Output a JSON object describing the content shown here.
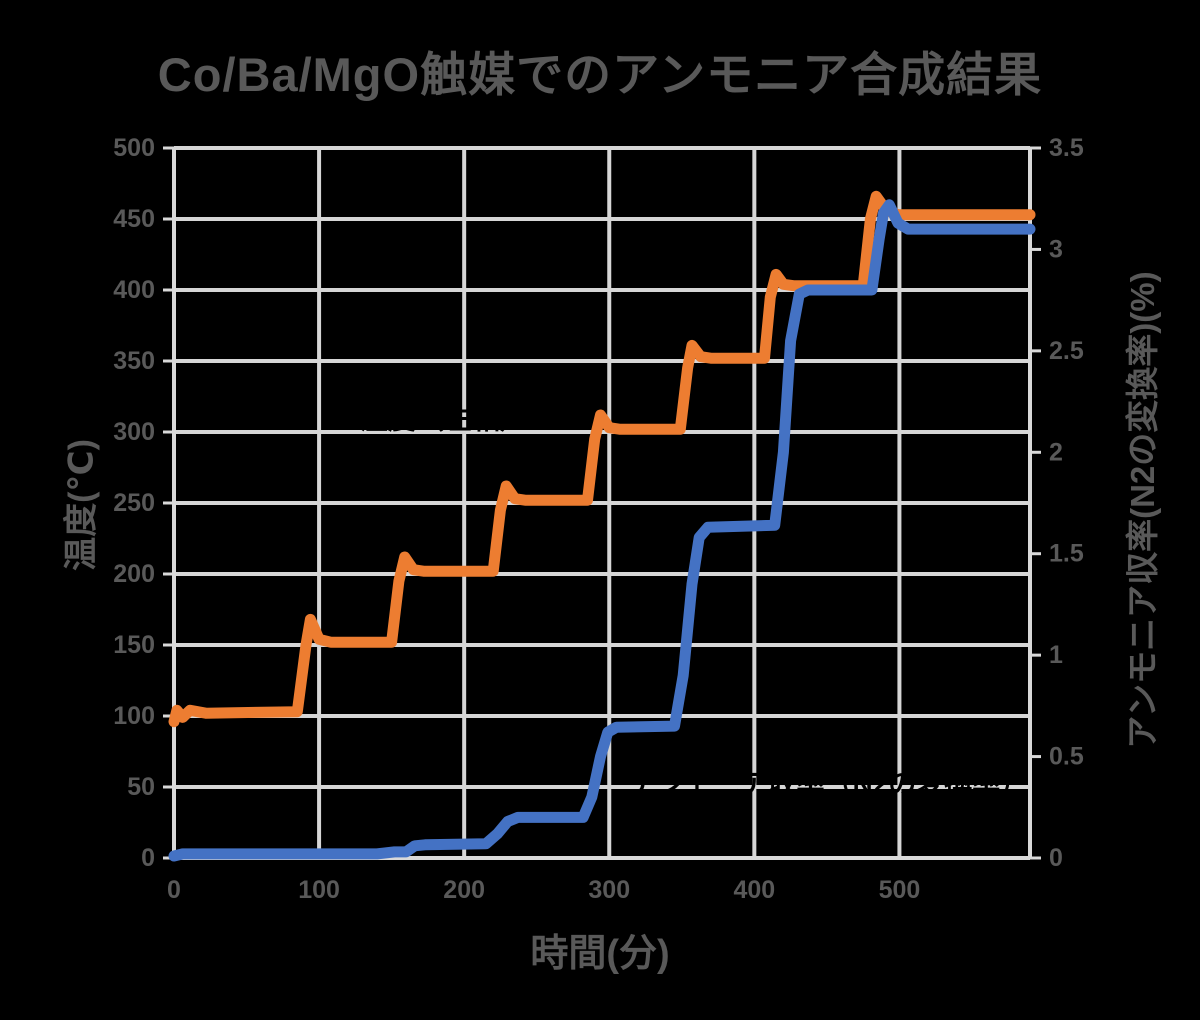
{
  "page": {
    "background": "#000000"
  },
  "chart_data": {
    "type": "line",
    "title": "Co/Ba/MgO触媒でのアンモニア合成結果",
    "xlabel": "時間(分)",
    "ylabel_left": "温度(℃)",
    "ylabel_right": "アンモニア収率(N2の変換率)(%)",
    "xlim": [
      0,
      590
    ],
    "x_ticks": [
      0,
      100,
      200,
      300,
      400,
      500
    ],
    "ylim_left": [
      0,
      500
    ],
    "y_ticks_left": [
      0,
      50,
      100,
      150,
      200,
      250,
      300,
      350,
      400,
      450,
      500
    ],
    "ylim_right": [
      0,
      3.5
    ],
    "y_ticks_right": [
      0,
      0.5,
      1,
      1.5,
      2,
      2.5,
      3,
      3.5
    ],
    "grid": true,
    "legend": "none",
    "colors": {
      "grid": "#D6D6D6",
      "axis": "#D9D9D9",
      "text": "#595959",
      "temperature": "#ED7D31",
      "yield": "#4472C4",
      "background": "#000000"
    },
    "series": [
      {
        "name": "温度",
        "axis": "left",
        "color": "#ED7D31",
        "points": [
          [
            0,
            96
          ],
          [
            2,
            104
          ],
          [
            6,
            99
          ],
          [
            11,
            104
          ],
          [
            22,
            102
          ],
          [
            85,
            103
          ],
          [
            91,
            150
          ],
          [
            94,
            168
          ],
          [
            100,
            154
          ],
          [
            108,
            152
          ],
          [
            150,
            152
          ],
          [
            155,
            195
          ],
          [
            159,
            212
          ],
          [
            165,
            203
          ],
          [
            172,
            202
          ],
          [
            220,
            202
          ],
          [
            225,
            245
          ],
          [
            229,
            262
          ],
          [
            235,
            253
          ],
          [
            242,
            252
          ],
          [
            285,
            252
          ],
          [
            290,
            295
          ],
          [
            294,
            312
          ],
          [
            300,
            303
          ],
          [
            307,
            302
          ],
          [
            349,
            302
          ],
          [
            354,
            345
          ],
          [
            357,
            361
          ],
          [
            363,
            353
          ],
          [
            370,
            352
          ],
          [
            407,
            352
          ],
          [
            411,
            395
          ],
          [
            415,
            411
          ],
          [
            420,
            404
          ],
          [
            427,
            403
          ],
          [
            475,
            403
          ],
          [
            480,
            450
          ],
          [
            484,
            466
          ],
          [
            491,
            456
          ],
          [
            499,
            453
          ],
          [
            590,
            453
          ]
        ]
      },
      {
        "name": "アンモニア収率",
        "axis": "right",
        "color": "#4472C4",
        "points": [
          [
            0,
            0.01
          ],
          [
            6,
            0.02
          ],
          [
            140,
            0.02
          ],
          [
            152,
            0.03
          ],
          [
            160,
            0.03
          ],
          [
            166,
            0.06
          ],
          [
            173,
            0.065
          ],
          [
            215,
            0.07
          ],
          [
            223,
            0.12
          ],
          [
            230,
            0.18
          ],
          [
            237,
            0.2
          ],
          [
            282,
            0.2
          ],
          [
            288,
            0.3
          ],
          [
            294,
            0.5
          ],
          [
            299,
            0.62
          ],
          [
            305,
            0.645
          ],
          [
            345,
            0.65
          ],
          [
            351,
            0.9
          ],
          [
            357,
            1.35
          ],
          [
            362,
            1.58
          ],
          [
            368,
            1.63
          ],
          [
            414,
            1.64
          ],
          [
            420,
            2.0
          ],
          [
            425,
            2.55
          ],
          [
            431,
            2.78
          ],
          [
            437,
            2.8
          ],
          [
            481,
            2.8
          ],
          [
            486,
            3.05
          ],
          [
            489,
            3.18
          ],
          [
            493,
            3.22
          ],
          [
            499,
            3.13
          ],
          [
            506,
            3.1
          ],
          [
            590,
            3.1
          ]
        ]
      }
    ],
    "annotations": [
      {
        "text": "温度（左軸）",
        "x": 128,
        "y_left": 309,
        "color": "#000000",
        "hidden": true
      },
      {
        "text": "アンモニア収率（N2の変換率）",
        "x": 314,
        "y_left": 52,
        "color": "#000000",
        "hidden": true
      }
    ]
  }
}
